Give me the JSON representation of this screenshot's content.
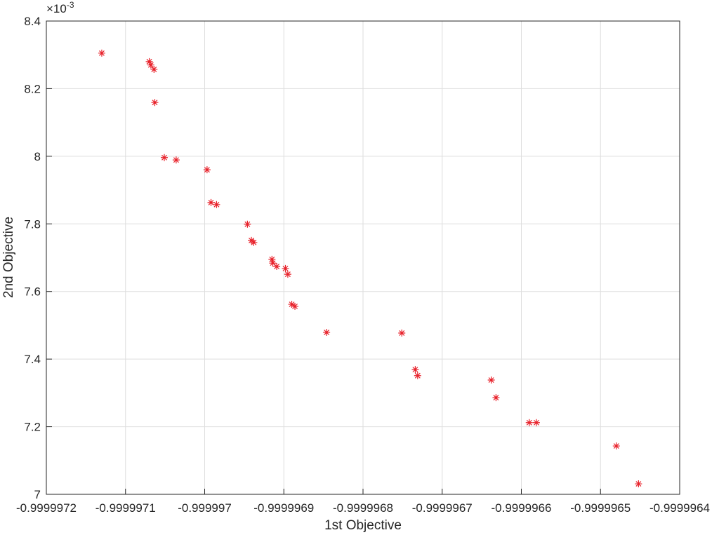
{
  "chart_data": {
    "type": "scatter",
    "xlabel": "1st Objective",
    "ylabel": "2nd Objective",
    "y_multiplier": {
      "base": "×10",
      "exponent": "-3"
    },
    "marker": "asterisk",
    "color": "#e8212a",
    "grid": true,
    "xlim": [
      -0.9999972,
      -0.9999964
    ],
    "xticks": [
      -0.9999972,
      -0.9999971,
      -0.999997,
      -0.9999969,
      -0.9999968,
      -0.9999967,
      -0.9999966,
      -0.9999965,
      -0.9999964
    ],
    "ylim": [
      7,
      8.4
    ],
    "yticks": [
      7,
      7.2,
      7.4,
      7.6,
      7.8,
      8,
      8.2,
      8.4
    ],
    "x": [
      -0.99999713,
      -0.99999707,
      -0.999997068,
      -0.999997064,
      -0.999997063,
      -0.999997051,
      -0.999997036,
      -0.999996997,
      -0.999996992,
      -0.999996985,
      -0.999996946,
      -0.999996941,
      -0.999996938,
      -0.999996915,
      -0.999996914,
      -0.999996909,
      -0.999996898,
      -0.999996895,
      -0.99999689,
      -0.999996886,
      -0.999996846,
      -0.999996751,
      -0.999996734,
      -0.999996731,
      -0.999996638,
      -0.999996632,
      -0.99999659,
      -0.999996581,
      -0.99999648,
      -0.999996452
    ],
    "values": [
      8.305,
      8.28,
      8.27,
      8.257,
      8.159,
      7.996,
      7.989,
      7.96,
      7.863,
      7.857,
      7.799,
      7.751,
      7.745,
      7.695,
      7.684,
      7.674,
      7.668,
      7.651,
      7.562,
      7.556,
      7.479,
      7.477,
      7.369,
      7.351,
      7.338,
      7.286,
      7.212,
      7.212,
      7.143,
      7.031
    ]
  }
}
